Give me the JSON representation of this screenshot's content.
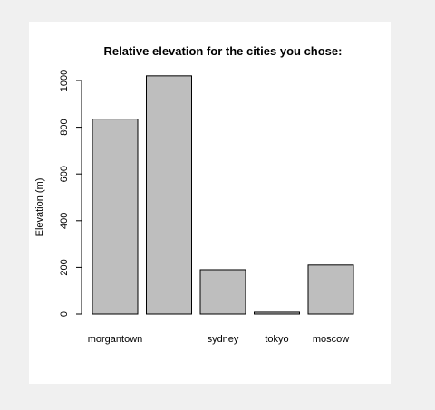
{
  "chart_data": {
    "type": "bar",
    "title": "Relative elevation for the cities you chose:",
    "xlabel": "",
    "ylabel": "Elevation (m)",
    "categories": [
      "morgantown",
      "",
      "sydney",
      "tokyo",
      "moscow"
    ],
    "values": [
      835,
      1020,
      190,
      8,
      210
    ],
    "ylim": [
      0,
      1060
    ],
    "yticks": [
      0,
      200,
      400,
      600,
      800,
      1000
    ],
    "grid": false,
    "bar_fill": "#bebebe",
    "bar_stroke": "#000000"
  }
}
